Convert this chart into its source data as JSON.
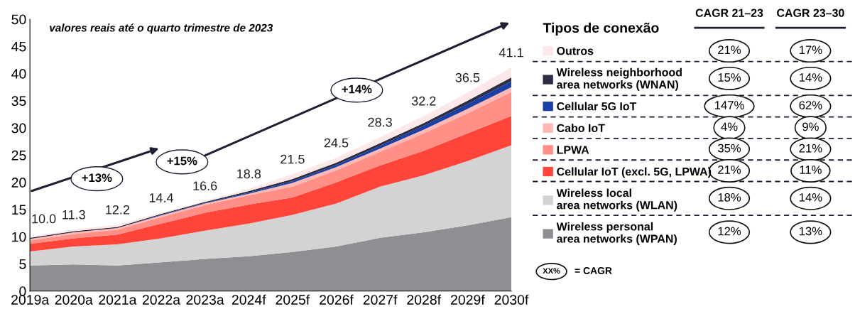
{
  "chart_data": {
    "type": "area",
    "stacked": true,
    "categories": [
      "2019a",
      "2020a",
      "2021a",
      "2022a",
      "2023a",
      "2024f",
      "2025f",
      "2026f",
      "2027f",
      "2028f",
      "2029f",
      "2030f"
    ],
    "series": [
      {
        "name": "Wireless personal\narea networks (WPAN)",
        "color": "#8e8e93",
        "values": [
          4.7,
          4.9,
          4.7,
          5.3,
          5.9,
          6.4,
          7.2,
          8.2,
          9.8,
          10.8,
          12.1,
          13.6
        ]
      },
      {
        "name": "Wireless local\narea networks (WLAN)",
        "color": "#d3d3d3",
        "values": [
          2.6,
          3.3,
          3.9,
          4.4,
          5.2,
          6.0,
          6.8,
          7.9,
          9.4,
          10.5,
          11.8,
          13.2
        ]
      },
      {
        "name": "Cellular IoT (excl. 5G, LPWA)",
        "color": "#ff453a",
        "values": [
          1.4,
          1.5,
          1.8,
          2.7,
          3.3,
          3.5,
          3.2,
          3.9,
          3.9,
          4.5,
          5.1,
          5.4
        ]
      },
      {
        "name": "LPWA",
        "color": "#ff8f87",
        "values": [
          0.6,
          0.8,
          0.9,
          1.2,
          1.4,
          1.7,
          2.0,
          2.2,
          2.5,
          3.2,
          3.7,
          4.4
        ]
      },
      {
        "name": "Cabo IoT",
        "color": "#ffb8b3",
        "values": [
          0.3,
          0.3,
          0.3,
          0.3,
          0.3,
          0.3,
          0.7,
          0.6,
          0.6,
          0.7,
          0.8,
          0.9
        ]
      },
      {
        "name": "Cellular 5G IoT",
        "color": "#1a3fa8",
        "values": [
          0.0,
          0.0,
          0.0,
          0.1,
          0.1,
          0.2,
          0.3,
          0.4,
          0.5,
          0.7,
          0.9,
          1.1
        ]
      },
      {
        "name": "Wireless neighborhood\narea networks (WNAN)",
        "color": "#2d2d44",
        "values": [
          0.2,
          0.2,
          0.2,
          0.2,
          0.2,
          0.3,
          0.4,
          0.4,
          0.5,
          0.5,
          0.6,
          0.7
        ]
      },
      {
        "name": "Outros",
        "color": "#fde8e8",
        "values": [
          0.2,
          0.3,
          0.4,
          0.2,
          0.2,
          0.4,
          0.9,
          0.9,
          1.1,
          1.3,
          1.5,
          1.8
        ]
      }
    ],
    "totals": [
      "10.0",
      "11.3",
      "12.2",
      "14.4",
      "16.6",
      "18.8",
      "21.5",
      "24.5",
      "28.3",
      "32.2",
      "36.5",
      "41.1"
    ],
    "ylim": [
      0,
      50
    ],
    "yticks": [
      0,
      5,
      10,
      15,
      20,
      25,
      30,
      35,
      40,
      45,
      50
    ],
    "grid": false,
    "legend": "right",
    "legend_title": "Tipos de conexão",
    "annotations": [
      "valores reais até o quarto trimestre de 2023",
      "+13%",
      "+15%",
      "+14%",
      "CAGR 21–23",
      "CAGR 23–30",
      "21%",
      "17%",
      "15%",
      "14%",
      "147%",
      "62%",
      "4%",
      "9%",
      "35%",
      "21%",
      "21%",
      "11%",
      "18%",
      "14%",
      "12%",
      "13%",
      "XX%",
      "= CAGR"
    ]
  }
}
